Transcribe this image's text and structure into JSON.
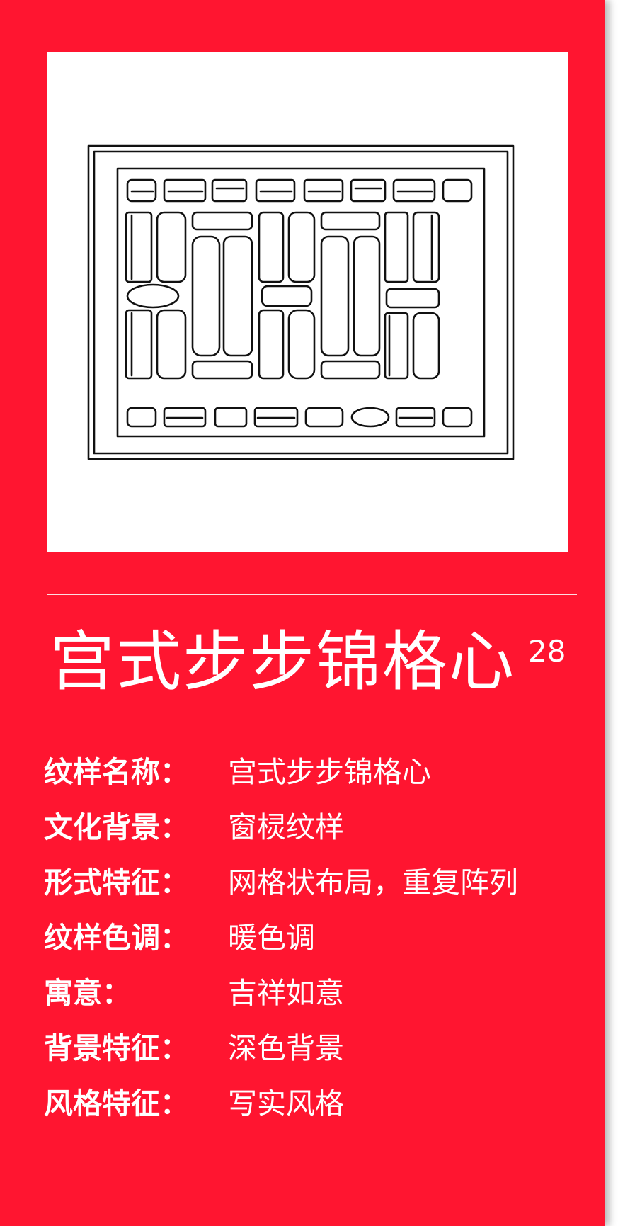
{
  "title": "宫式步步锦格心",
  "index": "28",
  "rows": [
    {
      "label": "纹样名称：",
      "value": "宫式步步锦格心"
    },
    {
      "label": "文化背景：",
      "value": "窗棂纹样"
    },
    {
      "label": "形式特征：",
      "value": "网格状布局，重复阵列"
    },
    {
      "label": "纹样色调：",
      "value": "暖色调"
    },
    {
      "label": "寓意：",
      "value": "吉祥如意"
    },
    {
      "label": "背景特征：",
      "value": "深色背景"
    },
    {
      "label": "风格特征：",
      "value": "写实风格"
    }
  ],
  "colors": {
    "background": "#ff1530",
    "panel": "#ffffff",
    "text": "#ffffff",
    "line": "#111111"
  }
}
